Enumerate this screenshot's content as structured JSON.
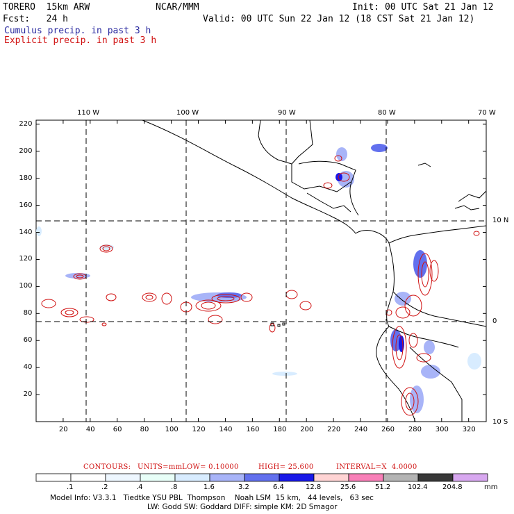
{
  "header": {
    "model": "TORERO  15km ARW",
    "org": "NCAR/MMM",
    "init": "Init: 00 UTC Sat 21 Jan 12",
    "fcst": "Fcst:   24 h",
    "valid": "Valid: 00 UTC Sun 22 Jan 12 (18 CST Sat 21 Jan 12)",
    "field_cumulus": "Cumulus precip. in past 3 h",
    "field_explicit": "Explicit precip. in past 3 h"
  },
  "colors": {
    "cumulus_text": "#2a2aa0",
    "explicit_text": "#d01010",
    "contour": "#d01010",
    "coast": "#000000"
  },
  "map": {
    "lon_labels": [
      "110 W",
      "100 W",
      "90 W",
      "80 W",
      "70 W"
    ],
    "lat_labels": [
      "10 N",
      "0",
      "10 S"
    ],
    "x_ticks": [
      "20",
      "40",
      "60",
      "80",
      "100",
      "120",
      "140",
      "160",
      "180",
      "200",
      "220",
      "240",
      "260",
      "280",
      "300",
      "320"
    ],
    "y_ticks": [
      "20",
      "40",
      "60",
      "80",
      "100",
      "120",
      "140",
      "160",
      "180",
      "200",
      "220"
    ]
  },
  "contours_line": {
    "label": "CONTOURS:",
    "units": "UNITS=mm",
    "low": "LOW= 0.10000",
    "high": "HIGH= 25.600",
    "interval": "INTERVAL=X  4.0000"
  },
  "legend": {
    "labels": [
      ".1",
      ".2",
      ".4",
      ".8",
      "1.6",
      "3.2",
      "6.4",
      "12.8",
      "25.6",
      "51.2",
      "102.4",
      "204.8"
    ],
    "unit": "mm",
    "colors": [
      "#ffffff",
      "#ffffff",
      "#eef7ff",
      "#e8fff8",
      "#d8ecff",
      "#a8b4f8",
      "#6270ee",
      "#1818e8",
      "#ffd4d4",
      "#f880b8",
      "#b4b4b4",
      "#383838",
      "#d8a8f0"
    ]
  },
  "model_info": {
    "line1": "Model Info: V3.3.1   Tiedtke YSU PBL  Thompson    Noah LSM  15 km,   44 levels,   63 sec",
    "line2": "LW: Godd SW: Goddard DIFF: simple KM: 2D Smagor"
  }
}
